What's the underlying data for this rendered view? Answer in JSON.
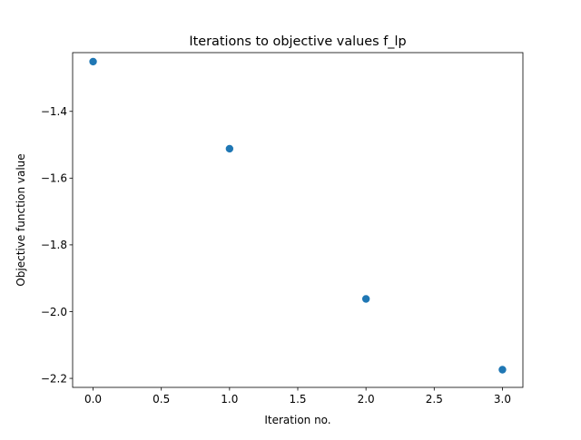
{
  "chart_data": {
    "type": "scatter",
    "title": "Iterations to objective values f_lp",
    "xlabel": "Iteration no.",
    "ylabel": "Objective function value",
    "xlim": [
      -0.15,
      3.15
    ],
    "ylim": [
      -2.227,
      -1.224
    ],
    "xticks": [
      0.0,
      0.5,
      1.0,
      1.5,
      2.0,
      2.5,
      3.0
    ],
    "xtick_labels": [
      "0.0",
      "0.5",
      "1.0",
      "1.5",
      "2.0",
      "2.5",
      "3.0"
    ],
    "yticks": [
      -2.2,
      -2.0,
      -1.8,
      -1.6,
      -1.4
    ],
    "ytick_labels": [
      "−2.2",
      "−2.0",
      "−1.8",
      "−1.6",
      "−1.4"
    ],
    "grid": false,
    "legend": "none",
    "marker_color": "#1f77b4",
    "series": [
      {
        "x": [
          0,
          1,
          2,
          3
        ],
        "y": [
          -1.251,
          -1.512,
          -1.962,
          -2.174
        ]
      }
    ]
  }
}
